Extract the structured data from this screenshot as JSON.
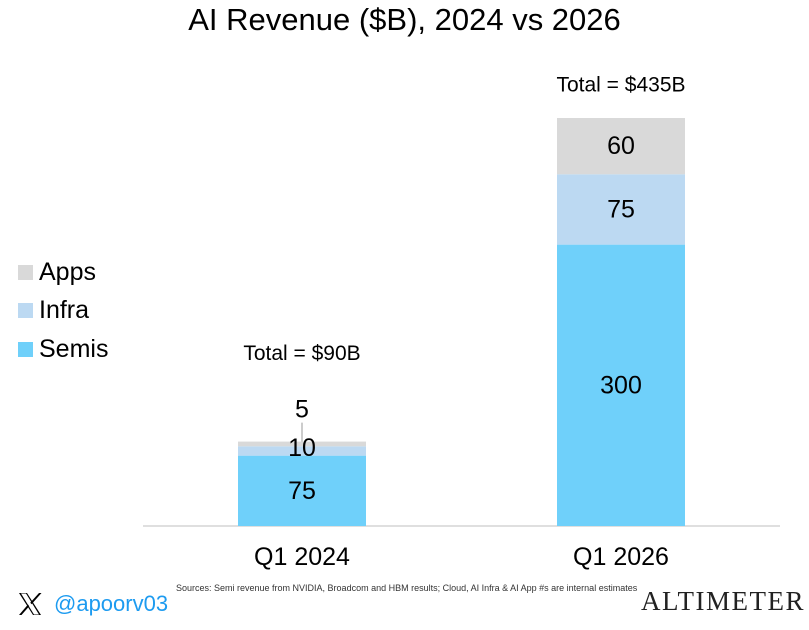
{
  "chart_data": {
    "type": "bar",
    "stacked": true,
    "title": "AI Revenue ($B), 2024 vs 2026",
    "categories": [
      "Q1 2024",
      "Q1 2026"
    ],
    "series": [
      {
        "name": "Semis",
        "values": [
          75,
          300
        ],
        "color": "#6fd0fa"
      },
      {
        "name": "Infra",
        "values": [
          10,
          75
        ],
        "color": "#bcd9f2"
      },
      {
        "name": "Apps",
        "values": [
          5,
          60
        ],
        "color": "#d9d9d9"
      }
    ],
    "totals": [
      "Total = $90B",
      "Total = $435B"
    ],
    "ylim": [
      0,
      435
    ],
    "grid": false,
    "legend_position": "left"
  },
  "legend": {
    "items": [
      {
        "label": "Apps",
        "color": "#d9d9d9"
      },
      {
        "label": "Infra",
        "color": "#bcd9f2"
      },
      {
        "label": "Semis",
        "color": "#6fd0fa"
      }
    ]
  },
  "footer": {
    "handle": "@apoorv03",
    "handle_icon": "x-logo-icon",
    "source": "Sources: Semi revenue from NVIDIA, Broadcom and HBM results; Cloud, AI Infra & AI App #s are internal estimates",
    "brand": "ALTIMETER"
  }
}
